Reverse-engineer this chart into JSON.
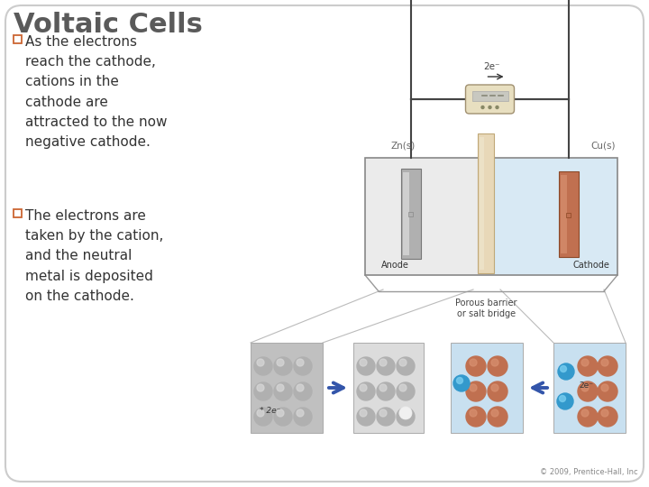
{
  "title": "Voltaic Cells",
  "title_color": "#5a5a5a",
  "title_fontsize": 22,
  "bullet_color": "#cc6633",
  "text_color": "#333333",
  "background_color": "#ffffff",
  "border_color": "#cccccc",
  "bullet1_lines": [
    "As the electrons",
    "reach the cathode,",
    "cations in the",
    "cathode are",
    "attracted to the now",
    "negative cathode."
  ],
  "bullet2_lines": [
    "The electrons are",
    "taken by the cation,",
    "and the neutral",
    "metal is deposited",
    "on the cathode."
  ],
  "copyright": "© 2009, Prentice-Hall, Inc",
  "arrow_color": "#3355aa",
  "bath_left_color": "#d8d8d8",
  "bath_right_color": "#c8e0f0",
  "anode_color": "#999999",
  "cathode_color": "#b87050",
  "barrier_color": "#e8d8b8",
  "wire_color": "#444444"
}
